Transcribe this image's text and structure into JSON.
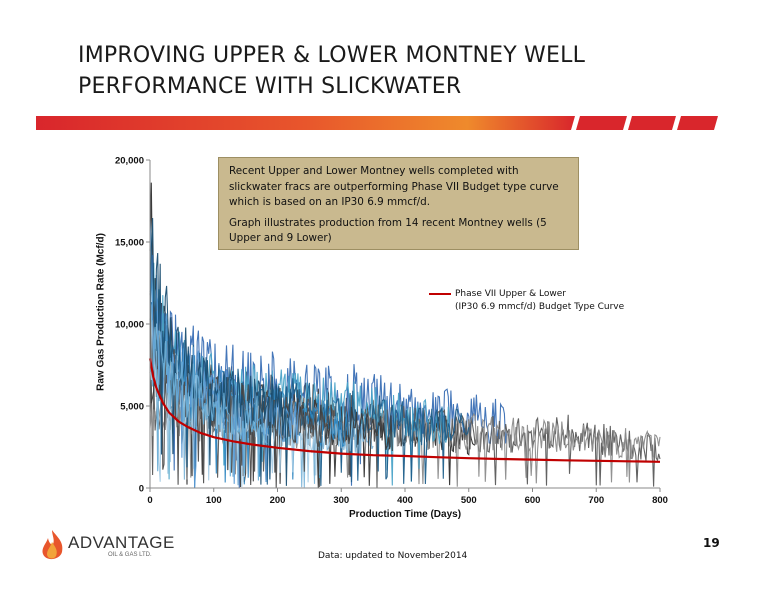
{
  "slide": {
    "title_line1": "IMPROVING UPPER & LOWER MONTNEY WELL",
    "title_line2": "PERFORMANCE WITH SLICKWATER",
    "accent_color": "#d9262c",
    "footnote": "Data: updated to November2014",
    "page_number": "19"
  },
  "logo": {
    "name": "ADVANTAGE",
    "subtitle": "OIL & GAS LTD."
  },
  "callout": {
    "p1": "Recent Upper and Lower Montney wells completed with slickwater fracs are outperforming Phase VII Budget type curve which is based on an IP30 6.9 mmcf/d.",
    "p2": "Graph illustrates production from 14 recent Montney wells (5 Upper and 9 Lower)",
    "bg_color": "#c9b98f"
  },
  "chart_data": {
    "type": "line",
    "xlabel": "Production Time (Days)",
    "ylabel": "Raw Gas Production Rate (Mcf/d)",
    "xlim": [
      0,
      800
    ],
    "ylim": [
      0,
      20000
    ],
    "x_ticks": [
      "0",
      "100",
      "200",
      "300",
      "400",
      "500",
      "600",
      "700",
      "800"
    ],
    "y_ticks": [
      "0",
      "5,000",
      "10,000",
      "15,000",
      "20,000"
    ],
    "grid": false,
    "legend": {
      "placement": "right",
      "entries": [
        {
          "line1": "Phase VII Upper & Lower",
          "line2": "(IP30 6.9 mmcf/d) Budget Type Curve",
          "color": "#c00000"
        }
      ]
    },
    "type_curve": {
      "color": "#c00000",
      "x": [
        0,
        5,
        10,
        20,
        30,
        45,
        60,
        80,
        100,
        130,
        160,
        200,
        250,
        300,
        350,
        400,
        450,
        500,
        550,
        600,
        650,
        700,
        750,
        800
      ],
      "y": [
        7900,
        6800,
        6100,
        5200,
        4600,
        4050,
        3700,
        3350,
        3100,
        2850,
        2650,
        2450,
        2250,
        2100,
        2000,
        1950,
        1880,
        1820,
        1770,
        1730,
        1690,
        1660,
        1630,
        1600
      ]
    },
    "wells": [
      {
        "color": "#2f2f2f",
        "x": [
          0,
          3,
          10,
          20,
          40,
          60,
          80,
          100,
          120,
          150,
          180,
          200,
          220,
          250,
          280,
          300,
          320,
          350,
          370,
          400,
          430,
          460,
          490,
          510
        ],
        "y": [
          20500,
          15000,
          10500,
          9000,
          7500,
          6500,
          6200,
          5800,
          5600,
          5400,
          5200,
          5100,
          5000,
          4900,
          4600,
          4300,
          4200,
          4000,
          3800,
          3700,
          3600,
          3300,
          3000,
          2800
        ]
      },
      {
        "color": "#3a6fb5",
        "x": [
          0,
          5,
          12,
          25,
          45,
          70,
          100,
          130,
          160,
          200,
          240,
          280,
          320,
          360,
          400,
          440,
          480,
          520,
          560
        ],
        "y": [
          15500,
          13000,
          10500,
          8800,
          7800,
          7300,
          6800,
          6600,
          6400,
          6200,
          6000,
          5800,
          5600,
          5300,
          5000,
          4700,
          4400,
          4200,
          4000
        ]
      },
      {
        "color": "#5a5a5a",
        "x": [
          0,
          100,
          200,
          300,
          350,
          400,
          450,
          500,
          550,
          600,
          620,
          650,
          680,
          700,
          720,
          740,
          760,
          780,
          800
        ],
        "y": [
          5000,
          4800,
          4600,
          4300,
          4000,
          3800,
          3600,
          3400,
          3300,
          3200,
          3100,
          3500,
          3300,
          2900,
          3000,
          2700,
          2600,
          2500,
          2300
        ]
      },
      {
        "color": "#8c8c8c",
        "x": [
          0,
          100,
          200,
          300,
          400,
          500,
          540,
          580,
          620,
          660,
          700,
          740,
          780,
          800
        ],
        "y": [
          4200,
          4000,
          3800,
          3600,
          3400,
          3400,
          3300,
          3200,
          3100,
          3000,
          2900,
          2800,
          2600,
          2500
        ]
      },
      {
        "color": "#4aa3c8",
        "x": [
          0,
          5,
          15,
          30,
          50,
          80,
          110,
          150,
          190,
          230,
          270,
          310,
          350,
          390,
          430,
          470
        ],
        "y": [
          13000,
          11000,
          9500,
          8000,
          7200,
          6600,
          6100,
          5800,
          5500,
          5300,
          5100,
          4900,
          4600,
          4400,
          4200,
          4000
        ]
      },
      {
        "color": "#1f5f8b",
        "x": [
          0,
          10,
          30,
          60,
          100,
          140,
          180,
          220,
          260,
          300,
          340,
          380,
          420,
          460,
          500
        ],
        "y": [
          9000,
          8000,
          7200,
          6600,
          6000,
          5600,
          5300,
          5100,
          4800,
          4500,
          4300,
          4100,
          3900,
          3700,
          3500
        ]
      },
      {
        "color": "#7fb6d9",
        "x": [
          0,
          10,
          25,
          50,
          80,
          110,
          140,
          170,
          200,
          230,
          260,
          290,
          320,
          350
        ],
        "y": [
          11000,
          9000,
          7500,
          6500,
          5800,
          5200,
          4800,
          4400,
          4100,
          3800,
          3500,
          3300,
          3100,
          2900
        ]
      },
      {
        "color": "#3b3b3b",
        "x": [
          0,
          15,
          40,
          70,
          100,
          140,
          180,
          220,
          260,
          300,
          340,
          380
        ],
        "y": [
          6500,
          6200,
          6000,
          5700,
          5300,
          4900,
          4600,
          4300,
          4000,
          3800,
          3500,
          3300
        ]
      },
      {
        "color": "#2e86c1",
        "x": [
          0,
          8,
          20,
          40,
          70,
          100,
          130,
          160,
          190,
          220,
          250,
          280,
          310
        ],
        "y": [
          10500,
          9000,
          7800,
          6900,
          6100,
          5600,
          5200,
          4900,
          4600,
          4300,
          4100,
          3900,
          3700
        ]
      },
      {
        "color": "#a9cde6",
        "x": [
          0,
          10,
          30,
          60,
          90,
          120,
          150,
          180,
          210,
          240,
          270
        ],
        "y": [
          8500,
          7500,
          6500,
          5700,
          5100,
          4600,
          4200,
          3900,
          3600,
          3300,
          3100
        ]
      },
      {
        "color": "#4d4d4d",
        "x": [
          0,
          10,
          25,
          50,
          80,
          120,
          160,
          200,
          240,
          280
        ],
        "y": [
          9500,
          8200,
          7000,
          6200,
          5500,
          5000,
          4600,
          4300,
          4000,
          3700
        ]
      },
      {
        "color": "#5b9bd5",
        "x": [
          0,
          5,
          15,
          30,
          55,
          85,
          115,
          145,
          175,
          205,
          235
        ],
        "y": [
          12500,
          10500,
          8800,
          7600,
          6700,
          6000,
          5500,
          5100,
          4700,
          4400,
          4100
        ]
      },
      {
        "color": "#1b4f72",
        "x": [
          0,
          10,
          25,
          45,
          70,
          100,
          130,
          160,
          190,
          220
        ],
        "y": [
          15500,
          12000,
          9500,
          8000,
          7000,
          6300,
          5700,
          5300,
          4900,
          4500
        ]
      },
      {
        "color": "#6baed6",
        "x": [
          0,
          8,
          20,
          40,
          65,
          95,
          125,
          155,
          185
        ],
        "y": [
          10000,
          8500,
          7300,
          6400,
          5700,
          5100,
          4700,
          4300,
          4000
        ]
      }
    ]
  }
}
